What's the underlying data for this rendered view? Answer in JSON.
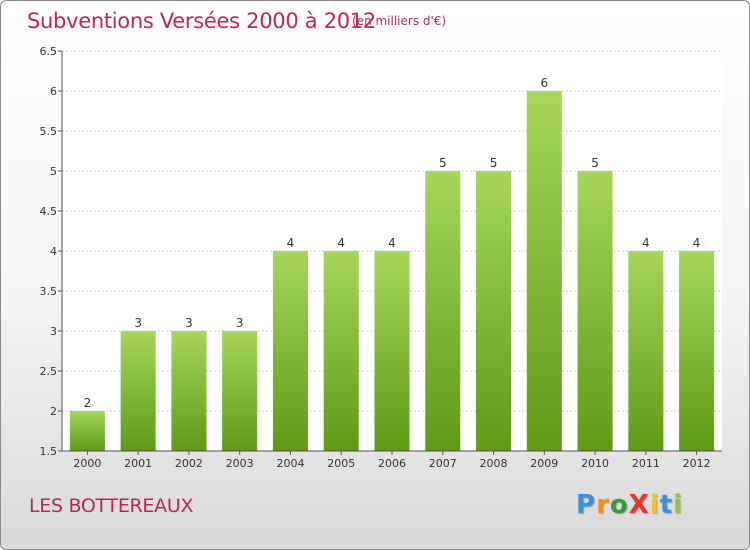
{
  "header": {
    "title": "Subventions Versées 2000 à 2012",
    "subtitle": "(en milliers d'€)"
  },
  "footer": {
    "commune": "LES BOTTEREAUX",
    "logo_text": "ProXiti",
    "logo_colors": [
      "#3d8fd6",
      "#f28c1e",
      "#2e9d3a",
      "#e8312e",
      "#f2c21e",
      "#3d8fd6",
      "#8dc63f"
    ]
  },
  "colors": {
    "bar_top": "#a6d65a",
    "bar_bottom": "#5f9a15",
    "title": "#c0245c",
    "grid": "#cccccc"
  },
  "chart_data": {
    "type": "bar",
    "categories": [
      "2000",
      "2001",
      "2002",
      "2003",
      "2004",
      "2005",
      "2006",
      "2007",
      "2008",
      "2009",
      "2010",
      "2011",
      "2012"
    ],
    "values": [
      2,
      3,
      3,
      3,
      4,
      4,
      4,
      5,
      5,
      6,
      5,
      4,
      4
    ],
    "data_labels": [
      "2",
      "3",
      "3",
      "3",
      "4",
      "4",
      "4",
      "5",
      "5",
      "6",
      "5",
      "4",
      "4"
    ],
    "ylim": [
      1.5,
      6.5
    ],
    "yticks": [
      1.5,
      2,
      2.5,
      3,
      3.5,
      4,
      4.5,
      5,
      5.5,
      6,
      6.5
    ],
    "ytick_labels": [
      "1.5",
      "2",
      "2.5",
      "3",
      "3.5",
      "4",
      "4.5",
      "5",
      "5.5",
      "6",
      "6.5"
    ],
    "grid": true
  }
}
